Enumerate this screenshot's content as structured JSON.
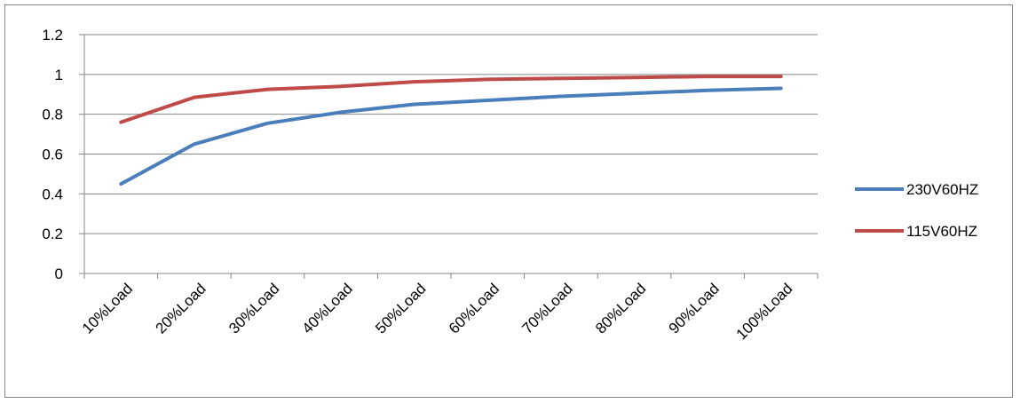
{
  "chart_data": {
    "type": "line",
    "title": "",
    "xlabel": "",
    "ylabel": "",
    "categories": [
      "10%Load",
      "20%Load",
      "30%Load",
      "40%Load",
      "50%Load",
      "60%Load",
      "70%Load",
      "80%Load",
      "90%Load",
      "100%Load"
    ],
    "y_ticks": [
      "0",
      "0.2",
      "0.4",
      "0.6",
      "0.8",
      "1",
      "1.2"
    ],
    "ylim": [
      0,
      1.2
    ],
    "grid": true,
    "legend_position": "right",
    "series": [
      {
        "name": "230V60HZ",
        "color": "#4A7EBB",
        "values": [
          0.45,
          0.65,
          0.755,
          0.81,
          0.85,
          0.87,
          0.89,
          0.905,
          0.92,
          0.93
        ]
      },
      {
        "name": "115V60HZ",
        "color": "#BE4B48",
        "values": [
          0.76,
          0.885,
          0.925,
          0.94,
          0.963,
          0.975,
          0.98,
          0.985,
          0.99,
          0.99
        ]
      }
    ]
  }
}
